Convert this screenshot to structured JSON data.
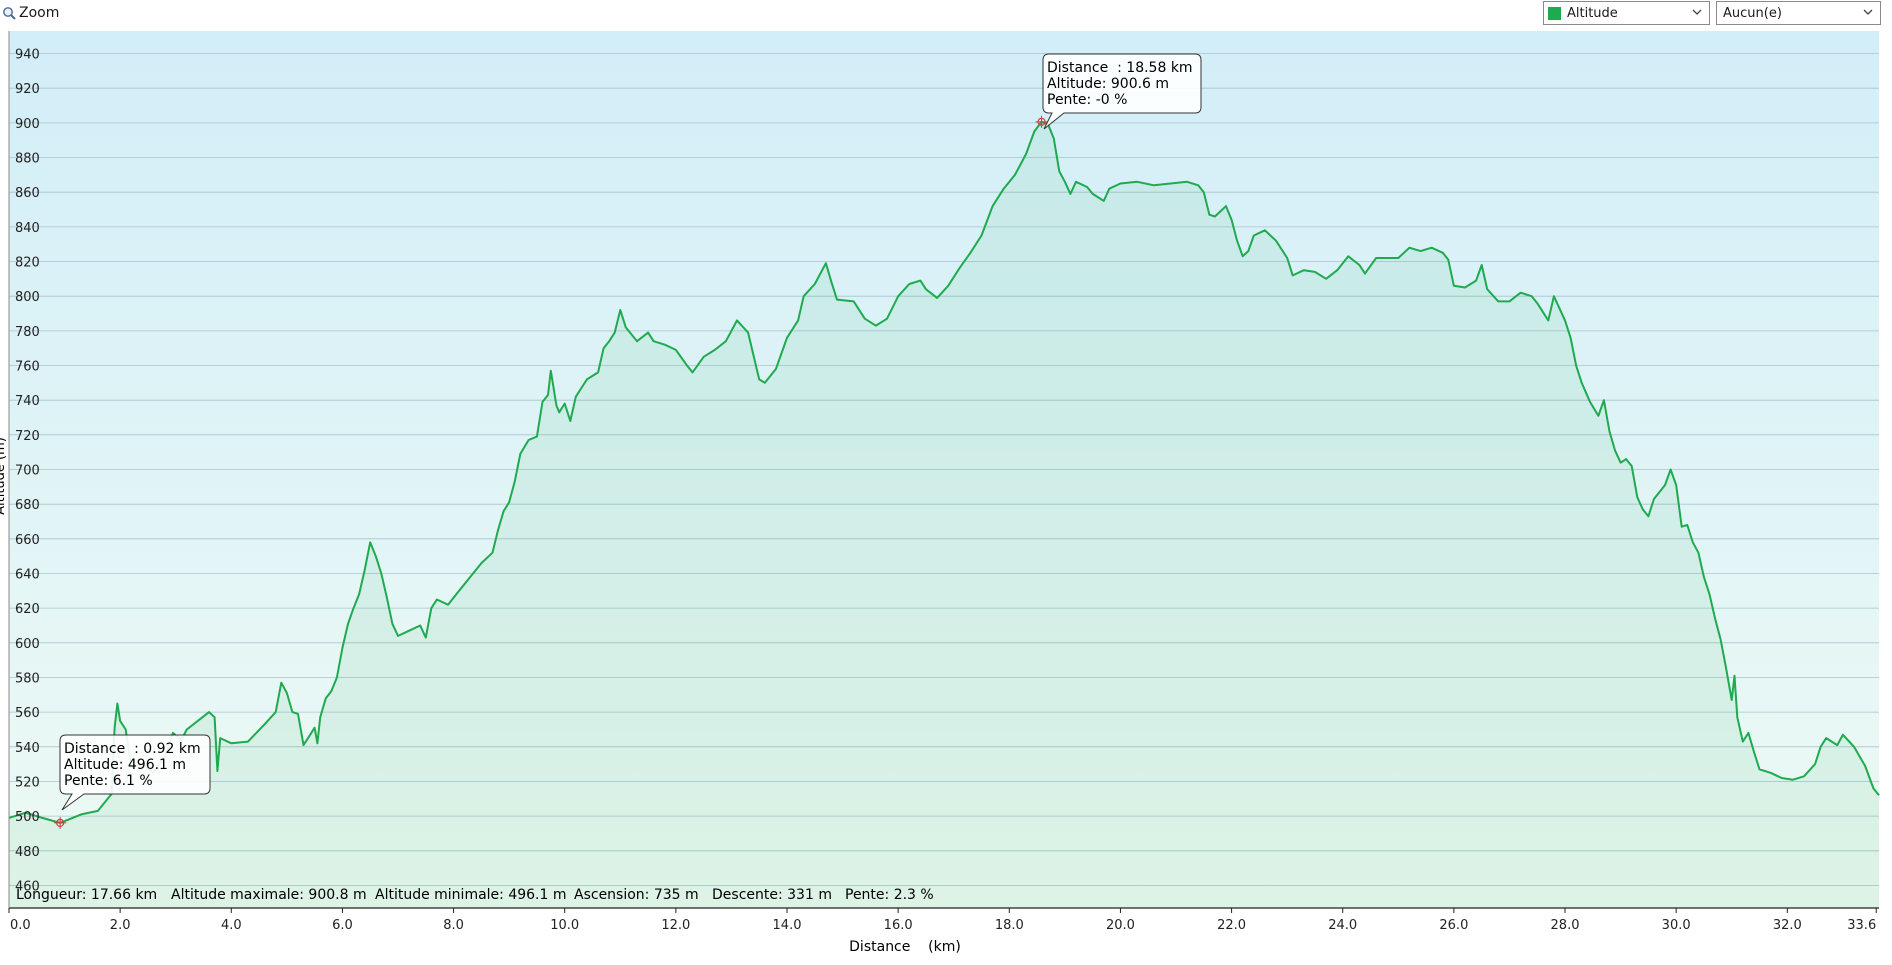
{
  "toolbar": {
    "zoom_label": "Zoom",
    "series_select": {
      "value": "Altitude",
      "color": "#1faa4f"
    },
    "overlay_select": {
      "value": "Aucun(e)"
    }
  },
  "stats": {
    "length": "Longueur: 17.66 km",
    "alt_max": "Altitude maximale: 900.8 m",
    "alt_min": "Altitude minimale: 496.1 m",
    "ascent": "Ascension: 735 m",
    "descent": "Descente: 331 m",
    "slope": "Pente: 2.3 %"
  },
  "tooltips": [
    {
      "distance": "Distance  : 0.92 km",
      "altitude": "Altitude: 496.1 m",
      "slope": "Pente: 6.1 %"
    },
    {
      "distance": "Distance  : 18.58 km",
      "altitude": "Altitude: 900.6 m",
      "slope": "Pente: -0 %"
    }
  ],
  "chart_data": {
    "type": "area",
    "xlabel": "Distance    (km)",
    "ylabel": "Altitude (m)",
    "xlim": [
      0,
      33.65
    ],
    "ylim": [
      447,
      953
    ],
    "xticks": [
      "0.0",
      "2.0",
      "4.0",
      "6.0",
      "8.0",
      "10.0",
      "12.0",
      "14.0",
      "16.0",
      "18.0",
      "20.0",
      "22.0",
      "24.0",
      "26.0",
      "28.0",
      "30.0",
      "32.0",
      "33.6"
    ],
    "yticks": [
      460,
      480,
      500,
      520,
      540,
      560,
      580,
      600,
      620,
      640,
      660,
      680,
      700,
      720,
      740,
      760,
      780,
      800,
      820,
      840,
      860,
      880,
      900,
      920,
      940
    ],
    "grid": true,
    "colors": {
      "line": "#1faa4f",
      "bg_top": "#d2eef8",
      "bg_bottom": "#eefaf4",
      "marker": "#d83a3a"
    },
    "markers": [
      {
        "x": 0.92,
        "y": 496.1
      },
      {
        "x": 18.58,
        "y": 900.6
      }
    ],
    "series": [
      {
        "values": [
          [
            0,
            499
          ],
          [
            0.3,
            502
          ],
          [
            0.6,
            499
          ],
          [
            0.92,
            496.1
          ],
          [
            1.3,
            501
          ],
          [
            1.6,
            503
          ],
          [
            1.85,
            513
          ],
          [
            1.9,
            551
          ],
          [
            1.95,
            565
          ],
          [
            2.0,
            555
          ],
          [
            2.1,
            550
          ],
          [
            2.2,
            528
          ],
          [
            2.4,
            530
          ],
          [
            2.6,
            525
          ],
          [
            2.8,
            534
          ],
          [
            2.95,
            548
          ],
          [
            3.1,
            544
          ],
          [
            3.2,
            550
          ],
          [
            3.4,
            555
          ],
          [
            3.6,
            560
          ],
          [
            3.7,
            557
          ],
          [
            3.75,
            526
          ],
          [
            3.8,
            545
          ],
          [
            4.0,
            542
          ],
          [
            4.3,
            543
          ],
          [
            4.6,
            553
          ],
          [
            4.8,
            560
          ],
          [
            4.9,
            577
          ],
          [
            5.0,
            571
          ],
          [
            5.1,
            560
          ],
          [
            5.2,
            559
          ],
          [
            5.3,
            541
          ],
          [
            5.4,
            546
          ],
          [
            5.5,
            551
          ],
          [
            5.55,
            542
          ],
          [
            5.6,
            557
          ],
          [
            5.7,
            568
          ],
          [
            5.8,
            572
          ],
          [
            5.9,
            580
          ],
          [
            6.0,
            597
          ],
          [
            6.1,
            611
          ],
          [
            6.2,
            620
          ],
          [
            6.3,
            628
          ],
          [
            6.4,
            642
          ],
          [
            6.5,
            658
          ],
          [
            6.6,
            650
          ],
          [
            6.7,
            640
          ],
          [
            6.8,
            626
          ],
          [
            6.9,
            611
          ],
          [
            7.0,
            604
          ],
          [
            7.2,
            607
          ],
          [
            7.4,
            610
          ],
          [
            7.5,
            603
          ],
          [
            7.6,
            620
          ],
          [
            7.7,
            625
          ],
          [
            7.9,
            622
          ],
          [
            8.1,
            630
          ],
          [
            8.3,
            638
          ],
          [
            8.5,
            646
          ],
          [
            8.7,
            652
          ],
          [
            8.8,
            665
          ],
          [
            8.9,
            676
          ],
          [
            9.0,
            681
          ],
          [
            9.1,
            693
          ],
          [
            9.2,
            709
          ],
          [
            9.35,
            717
          ],
          [
            9.5,
            719
          ],
          [
            9.6,
            739
          ],
          [
            9.7,
            743
          ],
          [
            9.75,
            757
          ],
          [
            9.85,
            737
          ],
          [
            9.9,
            733
          ],
          [
            10.0,
            738
          ],
          [
            10.1,
            728
          ],
          [
            10.2,
            742
          ],
          [
            10.3,
            747
          ],
          [
            10.4,
            752
          ],
          [
            10.6,
            756
          ],
          [
            10.7,
            770
          ],
          [
            10.8,
            774
          ],
          [
            10.9,
            779
          ],
          [
            11.0,
            792
          ],
          [
            11.1,
            782
          ],
          [
            11.3,
            774
          ],
          [
            11.5,
            779
          ],
          [
            11.6,
            774
          ],
          [
            11.8,
            772
          ],
          [
            12.0,
            769
          ],
          [
            12.2,
            760
          ],
          [
            12.3,
            756
          ],
          [
            12.5,
            765
          ],
          [
            12.7,
            769
          ],
          [
            12.9,
            774
          ],
          [
            13.1,
            786
          ],
          [
            13.3,
            779
          ],
          [
            13.5,
            752
          ],
          [
            13.6,
            750
          ],
          [
            13.8,
            758
          ],
          [
            14.0,
            776
          ],
          [
            14.2,
            786
          ],
          [
            14.3,
            800
          ],
          [
            14.5,
            807
          ],
          [
            14.7,
            819
          ],
          [
            14.8,
            808
          ],
          [
            14.9,
            798
          ],
          [
            15.2,
            797
          ],
          [
            15.4,
            787
          ],
          [
            15.5,
            785
          ],
          [
            15.6,
            783
          ],
          [
            15.8,
            787
          ],
          [
            16.0,
            800
          ],
          [
            16.2,
            807
          ],
          [
            16.4,
            809
          ],
          [
            16.5,
            804
          ],
          [
            16.7,
            799
          ],
          [
            16.9,
            806
          ],
          [
            17.1,
            816
          ],
          [
            17.3,
            825
          ],
          [
            17.5,
            835
          ],
          [
            17.7,
            852
          ],
          [
            17.9,
            862
          ],
          [
            18.1,
            870
          ],
          [
            18.3,
            882
          ],
          [
            18.45,
            895
          ],
          [
            18.58,
            900.6
          ],
          [
            18.7,
            899
          ],
          [
            18.8,
            891
          ],
          [
            18.9,
            872
          ],
          [
            19.0,
            866
          ],
          [
            19.1,
            859
          ],
          [
            19.2,
            866
          ],
          [
            19.4,
            863
          ],
          [
            19.5,
            859
          ],
          [
            19.7,
            855
          ],
          [
            19.8,
            862
          ],
          [
            20.0,
            865
          ],
          [
            20.3,
            866
          ],
          [
            20.6,
            864
          ],
          [
            20.9,
            865
          ],
          [
            21.2,
            866
          ],
          [
            21.4,
            864
          ],
          [
            21.5,
            860
          ],
          [
            21.6,
            847
          ],
          [
            21.7,
            846
          ],
          [
            21.9,
            852
          ],
          [
            22.0,
            844
          ],
          [
            22.1,
            832
          ],
          [
            22.2,
            823
          ],
          [
            22.3,
            826
          ],
          [
            22.4,
            835
          ],
          [
            22.6,
            838
          ],
          [
            22.8,
            832
          ],
          [
            23.0,
            822
          ],
          [
            23.1,
            812
          ],
          [
            23.3,
            815
          ],
          [
            23.5,
            814
          ],
          [
            23.7,
            810
          ],
          [
            23.9,
            815
          ],
          [
            24.1,
            823
          ],
          [
            24.3,
            818
          ],
          [
            24.4,
            813
          ],
          [
            24.6,
            822
          ],
          [
            24.8,
            822
          ],
          [
            25.0,
            822
          ],
          [
            25.2,
            828
          ],
          [
            25.4,
            826
          ],
          [
            25.6,
            828
          ],
          [
            25.8,
            825
          ],
          [
            25.9,
            821
          ],
          [
            26.0,
            806
          ],
          [
            26.2,
            805
          ],
          [
            26.4,
            809
          ],
          [
            26.5,
            818
          ],
          [
            26.6,
            804
          ],
          [
            26.8,
            797
          ],
          [
            27.0,
            797
          ],
          [
            27.2,
            802
          ],
          [
            27.4,
            800
          ],
          [
            27.5,
            796
          ],
          [
            27.7,
            786
          ],
          [
            27.8,
            800
          ],
          [
            28.0,
            786
          ],
          [
            28.1,
            776
          ],
          [
            28.2,
            760
          ],
          [
            28.3,
            750
          ],
          [
            28.45,
            739
          ],
          [
            28.6,
            731
          ],
          [
            28.7,
            740
          ],
          [
            28.8,
            722
          ],
          [
            28.9,
            711
          ],
          [
            29.0,
            704
          ],
          [
            29.1,
            706
          ],
          [
            29.2,
            702
          ],
          [
            29.3,
            684
          ],
          [
            29.4,
            677
          ],
          [
            29.5,
            673
          ],
          [
            29.6,
            683
          ],
          [
            29.8,
            691
          ],
          [
            29.9,
            700
          ],
          [
            30.0,
            691
          ],
          [
            30.1,
            667
          ],
          [
            30.2,
            668
          ],
          [
            30.3,
            658
          ],
          [
            30.4,
            652
          ],
          [
            30.5,
            638
          ],
          [
            30.6,
            628
          ],
          [
            30.7,
            614
          ],
          [
            30.8,
            602
          ],
          [
            30.9,
            585
          ],
          [
            31.0,
            567
          ],
          [
            31.05,
            581
          ],
          [
            31.1,
            557
          ],
          [
            31.2,
            543
          ],
          [
            31.3,
            548
          ],
          [
            31.4,
            537
          ],
          [
            31.5,
            527
          ],
          [
            31.7,
            525
          ],
          [
            31.9,
            522
          ],
          [
            32.1,
            521
          ],
          [
            32.3,
            523
          ],
          [
            32.5,
            530
          ],
          [
            32.6,
            540
          ],
          [
            32.7,
            545
          ],
          [
            32.9,
            541
          ],
          [
            33.0,
            547
          ],
          [
            33.2,
            540
          ],
          [
            33.4,
            529
          ],
          [
            33.55,
            516
          ],
          [
            33.65,
            512
          ]
        ]
      }
    ]
  }
}
